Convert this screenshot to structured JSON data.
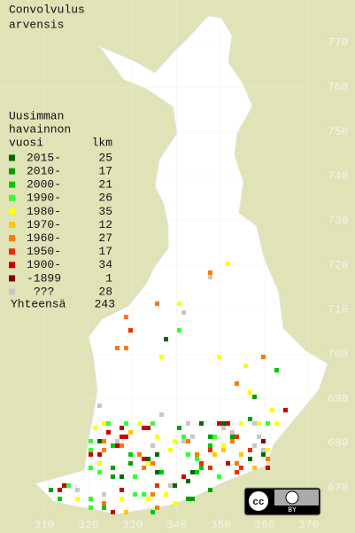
{
  "title": [
    "Convolvulus",
    "arvensis"
  ],
  "legend": {
    "heading": [
      "Uusimman",
      "havainnon",
      "vuosi"
    ],
    "count_heading": "lkm",
    "rows": [
      {
        "label": "2015-",
        "count": 25,
        "color": "#006a00"
      },
      {
        "label": "2010-",
        "count": 17,
        "color": "#00a000"
      },
      {
        "label": "2000-",
        "count": 21,
        "color": "#00cc00"
      },
      {
        "label": "1990-",
        "count": 26,
        "color": "#33ff33"
      },
      {
        "label": "1980-",
        "count": 35,
        "color": "#ffff00"
      },
      {
        "label": "1970-",
        "count": 12,
        "color": "#ffc800"
      },
      {
        "label": "1960-",
        "count": 27,
        "color": "#ff7a00"
      },
      {
        "label": "1950-",
        "count": 17,
        "color": "#e83000"
      },
      {
        "label": "1900-",
        "count": 34,
        "color": "#c80000"
      },
      {
        "label": "-1899",
        "count": 1,
        "color": "#800000"
      },
      {
        "label": "???",
        "count": 28,
        "color": "#c8c8c8"
      }
    ],
    "total_label": "Yhteensä",
    "total": 243
  },
  "y_labels": [
    770,
    760,
    750,
    740,
    730,
    720,
    710,
    700,
    690,
    680,
    670
  ],
  "x_labels": [
    310,
    320,
    330,
    340,
    350,
    360,
    370
  ],
  "badge": [
    "cc",
    "BY"
  ]
}
